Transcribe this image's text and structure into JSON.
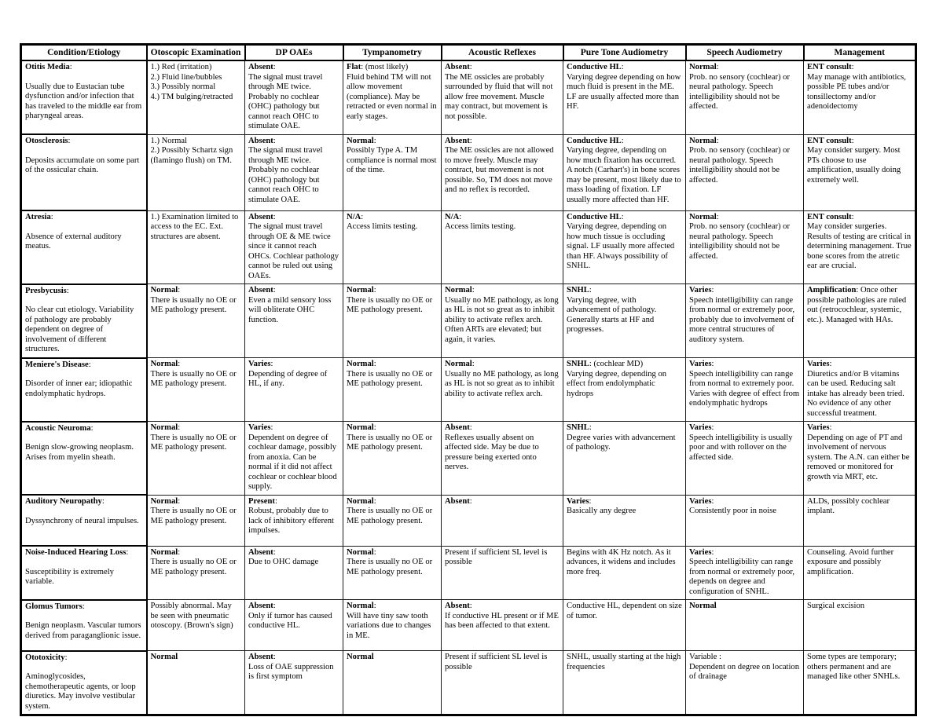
{
  "table": {
    "columns": [
      "Condition/Etiology",
      "Otoscopic Examination",
      "DP OAEs",
      "Tympanometry",
      "Acoustic Reflexes",
      "Pure Tone Audiometry",
      "Speech Audiometry",
      "Management"
    ],
    "rows": [
      [
        [
          {
            "b": "Otitis Media",
            "t": ":"
          },
          {
            "t": "Usually due to Eustacian tube dysfunction and/or infection that has traveled to the middle ear from pharyngeal areas.",
            "sp": true
          }
        ],
        [
          {
            "t": "1.) Red (irritation)"
          },
          {
            "t": "2.) Fluid line/bubbles"
          },
          {
            "t": "3.) Possibly normal"
          },
          {
            "t": "4.) TM bulging/retracted"
          }
        ],
        [
          {
            "b": "Absent",
            "t": ":"
          },
          {
            "t": "The signal must travel through ME twice. Probably no cochlear (OHC) pathology but cannot reach OHC to stimulate OAE."
          }
        ],
        [
          {
            "b": "Flat",
            "t": ": (most likely)"
          },
          {
            "t": "Fluid behind TM will not allow movement (compliance). May be retracted or even normal in early stages."
          }
        ],
        [
          {
            "b": "Absent",
            "t": ":"
          },
          {
            "t": "The ME ossicles are probably surrounded by fluid that will not allow free movement. Muscle may contract, but movement is not possible."
          }
        ],
        [
          {
            "b": "Conductive HL",
            "t": ":"
          },
          {
            "t": "Varying degree depending on how much fluid is present in the ME. LF are usually affected more than HF."
          }
        ],
        [
          {
            "b": "Normal",
            "t": ":"
          },
          {
            "t": "Prob. no sensory (cochlear) or neural pathology. Speech intelligibility should not be affected."
          }
        ],
        [
          {
            "b": "ENT consult",
            "t": ":"
          },
          {
            "t": "May manage with antibiotics, possible PE tubes and/or tonsillectomy and/or adenoidectomy"
          }
        ]
      ],
      [
        [
          {
            "b": "Otosclerosis",
            "t": ":"
          },
          {
            "t": "Deposits accumulate on some part of the ossicular chain.",
            "sp": true
          }
        ],
        [
          {
            "t": "1.) Normal"
          },
          {
            "t": "2.) Possibly Schartz sign (flamingo flush) on TM."
          }
        ],
        [
          {
            "b": "Absent",
            "t": ":"
          },
          {
            "t": "The signal must travel through ME twice. Probably no cochlear (OHC) pathology but cannot reach OHC to stimulate OAE."
          }
        ],
        [
          {
            "b": "Normal",
            "t": ":"
          },
          {
            "t": "Possibly Type A. TM compliance is normal most of the time."
          }
        ],
        [
          {
            "b": "Absent",
            "t": ":"
          },
          {
            "t": "The ME ossicles are not allowed to move freely. Muscle may contract, but movement is not possible. So, TM does not move and no reflex is recorded."
          }
        ],
        [
          {
            "b": "Conductive HL",
            "t": ":"
          },
          {
            "t": "Varying degree, depending on how much fixation has occurred. A notch (Carhart's) in bone scores may be present, most likely due to mass loading of fixation. LF usually more affected than HF."
          }
        ],
        [
          {
            "b": "Normal",
            "t": ":"
          },
          {
            "t": "Prob. no sensory (cochlear) or neural pathology. Speech intelligibility should not be affected."
          }
        ],
        [
          {
            "b": "ENT consult",
            "t": ":"
          },
          {
            "t": "May consider surgery. Most PTs choose to use amplification, usually doing extremely well."
          }
        ]
      ],
      [
        [
          {
            "b": "Atresia",
            "t": ":"
          },
          {
            "t": "Absence of external auditory meatus.",
            "sp": true
          }
        ],
        [
          {
            "t": "1.) Examination limited to access to the EC. Ext. structures are absent."
          }
        ],
        [
          {
            "b": "Absent",
            "t": ":"
          },
          {
            "t": "The signal must travel through OE & ME twice since it cannot reach OHCs. Cochlear pathology cannot be ruled out using OAEs."
          }
        ],
        [
          {
            "b": "N/A",
            "t": ":"
          },
          {
            "t": "Access limits testing."
          }
        ],
        [
          {
            "b": "N/A",
            "t": ":"
          },
          {
            "t": "Access limits testing."
          }
        ],
        [
          {
            "b": "Conductive HL",
            "t": ":"
          },
          {
            "t": "Varying degree, depending on how much tissue is occluding signal. LF usually more affected than HF. Always possibility of SNHL."
          }
        ],
        [
          {
            "b": "Normal",
            "t": ":"
          },
          {
            "t": "Prob. no sensory (cochlear) or neural pathology. Speech intelligibility should not be affected."
          }
        ],
        [
          {
            "b": "ENT consult",
            "t": ":"
          },
          {
            "t": "May consider surgeries. Results of testing are critical in determining management. True bone scores from the atretic ear are crucial."
          }
        ]
      ],
      [
        [
          {
            "b": "Presbycusis",
            "t": ":"
          },
          {
            "t": "No clear cut etiology. Variability of pathology are probably dependent on degree of involvement of different structures.",
            "sp": true
          }
        ],
        [
          {
            "b": "Normal",
            "t": ":"
          },
          {
            "t": "There is usually no OE or ME pathology present."
          }
        ],
        [
          {
            "b": "Absent",
            "t": ":"
          },
          {
            "t": "Even a mild sensory loss will obliterate OHC function."
          }
        ],
        [
          {
            "b": "Normal",
            "t": ":"
          },
          {
            "t": "There is usually no OE or ME pathology present."
          }
        ],
        [
          {
            "b": "Normal",
            "t": ":"
          },
          {
            "t": "Usually no ME pathology, as long as HL is not so great as to inhibit ability to activate reflex arch. Often ARTs are elevated; but again, it varies."
          }
        ],
        [
          {
            "b": "SNHL",
            "t": ":"
          },
          {
            "t": "Varying degree, with advancement of pathology. Generally starts at HF and progresses."
          }
        ],
        [
          {
            "b": "Varies",
            "t": ":"
          },
          {
            "t": "Speech intelligibility can range from normal or extremely poor, probably due to involvement of more central structures of auditory system."
          }
        ],
        [
          {
            "b": "Amplification",
            "t": ": Once other possible pathologies are ruled out (retrocochlear, systemic, etc.). Managed with HAs."
          }
        ]
      ],
      [
        [
          {
            "b": "Meniere's Disease",
            "t": ":"
          },
          {
            "t": "Disorder of inner ear; idiopathic endolymphatic hydrops.",
            "sp": true
          }
        ],
        [
          {
            "b": "Normal",
            "t": ":"
          },
          {
            "t": "There is usually no OE or ME pathology present."
          }
        ],
        [
          {
            "b": "Varies",
            "t": ":"
          },
          {
            "t": "Depending of degree of HL, if any."
          }
        ],
        [
          {
            "b": "Normal",
            "t": ":"
          },
          {
            "t": "There is usually no OE or ME pathology present."
          }
        ],
        [
          {
            "b": "Normal",
            "t": ":"
          },
          {
            "t": "Usually no ME pathology, as long as HL is not so great as to inhibit ability to activate reflex arch."
          }
        ],
        [
          {
            "b": "SNHL",
            "t": ": (cochlear MD)"
          },
          {
            "t": "Varying degree, depending on effect from endolymphatic hydrops"
          }
        ],
        [
          {
            "b": "Varies",
            "t": ":"
          },
          {
            "t": "Speech intelligibility can range from normal to extremely poor. Varies with degree of effect from endolymphatic hydrops"
          }
        ],
        [
          {
            "b": "Varies",
            "t": ":"
          },
          {
            "t": "Diuretics and/or B vitamins can be used. Reducing salt intake has already been tried. No evidence of any other successful treatment."
          }
        ]
      ],
      [
        [
          {
            "b": "Acoustic Neuroma",
            "t": ":"
          },
          {
            "t": "Benign slow-growing neoplasm. Arises from myelin sheath.",
            "sp": true
          }
        ],
        [
          {
            "b": "Normal",
            "t": ":"
          },
          {
            "t": "There is usually no OE or ME pathology present."
          }
        ],
        [
          {
            "b": "Varies",
            "t": ":"
          },
          {
            "t": "Dependent on degree of cochlear damage, possibly from anoxia. Can be normal if it did not affect cochlear or cochlear blood supply."
          }
        ],
        [
          {
            "b": "Normal",
            "t": ":"
          },
          {
            "t": "There is usually no OE or ME pathology present."
          }
        ],
        [
          {
            "b": "Absent",
            "t": ":"
          },
          {
            "t": "Reflexes usually absent on affected side. May be due to pressure being exerted onto nerves."
          }
        ],
        [
          {
            "b": "SNHL",
            "t": ":"
          },
          {
            "t": "Degree varies with advancement of pathology."
          }
        ],
        [
          {
            "b": "Varies",
            "t": ":"
          },
          {
            "t": "Speech intelligibility is usually poor and with rollover on the affected side."
          }
        ],
        [
          {
            "b": "Varies",
            "t": ":"
          },
          {
            "t": "Depending on age of PT and involvement of nervous system. The A.N. can either be removed or monitored for growth via MRT, etc."
          }
        ]
      ],
      [
        [
          {
            "b": "Auditory Neuropathy",
            "t": ":"
          },
          {
            "t": "Dyssynchrony of neural impulses.",
            "sp": true
          }
        ],
        [
          {
            "b": "Normal",
            "t": ":"
          },
          {
            "t": "There is usually no OE or ME pathology present."
          }
        ],
        [
          {
            "b": "Present",
            "t": ":"
          },
          {
            "t": "Robust, probably due to lack of inhibitory efferent impulses."
          }
        ],
        [
          {
            "b": "Normal",
            "t": ":"
          },
          {
            "t": "There is usually no OE or ME pathology present."
          }
        ],
        [
          {
            "b": "Absent",
            "t": ":"
          }
        ],
        [
          {
            "b": "Varies",
            "t": ":"
          },
          {
            "t": "Basically any degree"
          }
        ],
        [
          {
            "b": "Varies",
            "t": ":"
          },
          {
            "t": "Consistently poor in noise"
          }
        ],
        [
          {
            "t": "ALDs, possibly cochlear implant."
          }
        ]
      ],
      [
        [
          {
            "b": "Noise-Induced Hearing Loss",
            "t": ":"
          },
          {
            "t": "Susceptibility is extremely variable.",
            "sp": true
          }
        ],
        [
          {
            "b": "Normal",
            "t": ":"
          },
          {
            "t": "There is usually no OE or ME pathology present."
          }
        ],
        [
          {
            "b": "Absent",
            "t": ":"
          },
          {
            "t": "Due to OHC damage"
          }
        ],
        [
          {
            "b": "Normal",
            "t": ":"
          },
          {
            "t": "There is usually no OE or ME pathology present."
          }
        ],
        [
          {
            "t": "Present if sufficient SL level is possible"
          }
        ],
        [
          {
            "t": "Begins with 4K Hz notch. As it advances, it widens and includes more freq."
          }
        ],
        [
          {
            "b": "Varies",
            "t": ":"
          },
          {
            "t": "Speech intelligibility can range from normal or extremely poor, depends on degree and configuration of SNHL."
          }
        ],
        [
          {
            "t": "Counseling. Avoid further exposure and possibly amplification."
          }
        ]
      ],
      [
        [
          {
            "b": "Glomus Tumors",
            "t": ":"
          },
          {
            "t": "Benign neoplasm. Vascular tumors derived from paraganglionic issue.",
            "sp": true
          }
        ],
        [
          {
            "t": "Possibly abnormal. May be seen with pneumatic otoscopy. (Brown's sign)"
          }
        ],
        [
          {
            "b": "Absent",
            "t": ":"
          },
          {
            "t": "Only if tumor has caused conductive HL."
          }
        ],
        [
          {
            "b": "Normal",
            "t": ":"
          },
          {
            "t": "Will have tiny saw tooth variations due to changes in ME."
          }
        ],
        [
          {
            "b": "Absent",
            "t": ":"
          },
          {
            "t": "If conductive HL present or if ME has been affected to that extent."
          }
        ],
        [
          {
            "t": "Conductive HL, dependent on size of tumor."
          }
        ],
        [
          {
            "b": "Normal"
          }
        ],
        [
          {
            "t": "Surgical excision"
          }
        ]
      ],
      [
        [
          {
            "b": "Ototoxicity",
            "t": ":"
          },
          {
            "t": "Aminoglycosides, chemotherapeutic agents, or loop diuretics. May involve vestibular system.",
            "sp": true
          }
        ],
        [
          {
            "b": "Normal"
          }
        ],
        [
          {
            "b": "Absent",
            "t": ":"
          },
          {
            "t": "Loss of OAE suppression is first symptom"
          }
        ],
        [
          {
            "b": "Normal"
          }
        ],
        [
          {
            "t": "Present if sufficient SL level is possible"
          }
        ],
        [
          {
            "t": "SNHL, usually starting at the high frequencies"
          }
        ],
        [
          {
            "t": "Variable :"
          },
          {
            "t": "Dependent on degree on location of drainage"
          }
        ],
        [
          {
            "t": "Some types are temporary; others permanent and are managed like other SNHLs."
          }
        ]
      ]
    ]
  }
}
